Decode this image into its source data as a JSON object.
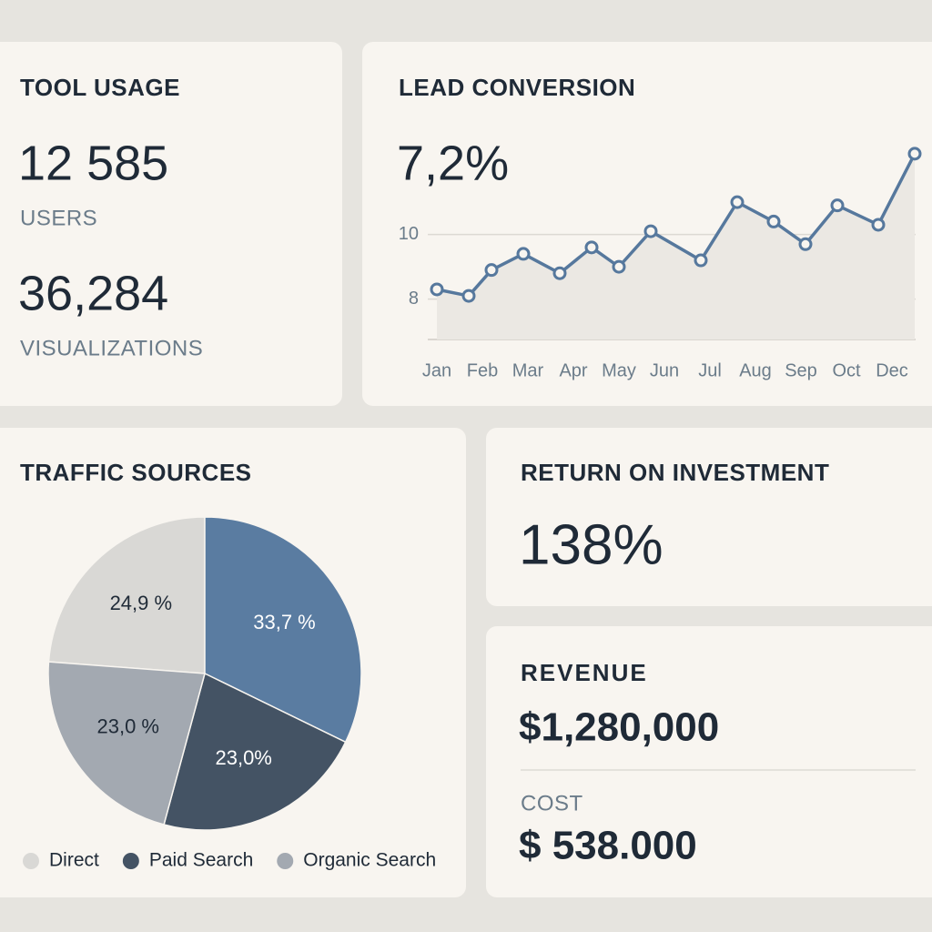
{
  "tool_usage": {
    "title": "TOOL USAGE",
    "users_value": "12 585",
    "users_label": "USERS",
    "visualizations_value": "36,284",
    "visualizations_label": "VISUALIZATIONS"
  },
  "chart_data": [
    {
      "type": "line",
      "title": "LEAD CONVERSION",
      "headline": "7,2%",
      "x": [
        0,
        0.7,
        1.2,
        1.9,
        2.7,
        3.4,
        4.0,
        4.7,
        5.8,
        6.6,
        7.4,
        8.1,
        8.8,
        9.7,
        10.5
      ],
      "values": [
        8.3,
        8.1,
        8.9,
        9.4,
        8.8,
        9.6,
        9.0,
        10.1,
        9.2,
        11.0,
        10.4,
        9.7,
        10.9,
        10.3,
        12.5
      ],
      "color": "#56789d",
      "xlim": [
        -0.2,
        10.6
      ],
      "xticks": [
        {
          "value": 0,
          "label": "Jan"
        },
        {
          "value": 1,
          "label": "Feb"
        },
        {
          "value": 2,
          "label": "Mar"
        },
        {
          "value": 3,
          "label": "Apr"
        },
        {
          "value": 4,
          "label": "May"
        },
        {
          "value": 5,
          "label": "Jun"
        },
        {
          "value": 6,
          "label": "Jul"
        },
        {
          "value": 7,
          "label": "Aug"
        },
        {
          "value": 8,
          "label": "Sep"
        },
        {
          "value": 9,
          "label": "Oct"
        },
        {
          "value": 10,
          "label": "Dec"
        }
      ],
      "ylim": [
        6.75,
        12.75
      ],
      "yticks": [
        8,
        10
      ],
      "grid": true
    },
    {
      "type": "pie",
      "title": "TRAFFIC SOURCES",
      "categories": [
        "Direct",
        null,
        "Paid Search",
        "Organic Search"
      ],
      "values": [
        24.9,
        33.7,
        23.0,
        23.0
      ],
      "value_labels": [
        "24,9 %",
        "33,7 %",
        "23,0%",
        "23,0 %"
      ],
      "colors": [
        "#d9d8d5",
        "#5a7ca1",
        "#445364",
        "#a3a9b1"
      ]
    }
  ],
  "roi": {
    "title": "RETURN ON INVESTMENT",
    "value": "138%"
  },
  "revenue": {
    "title": "REVENUE",
    "value": "$1,280,000",
    "cost_label": "COST",
    "cost_value": "$ 538.000"
  }
}
